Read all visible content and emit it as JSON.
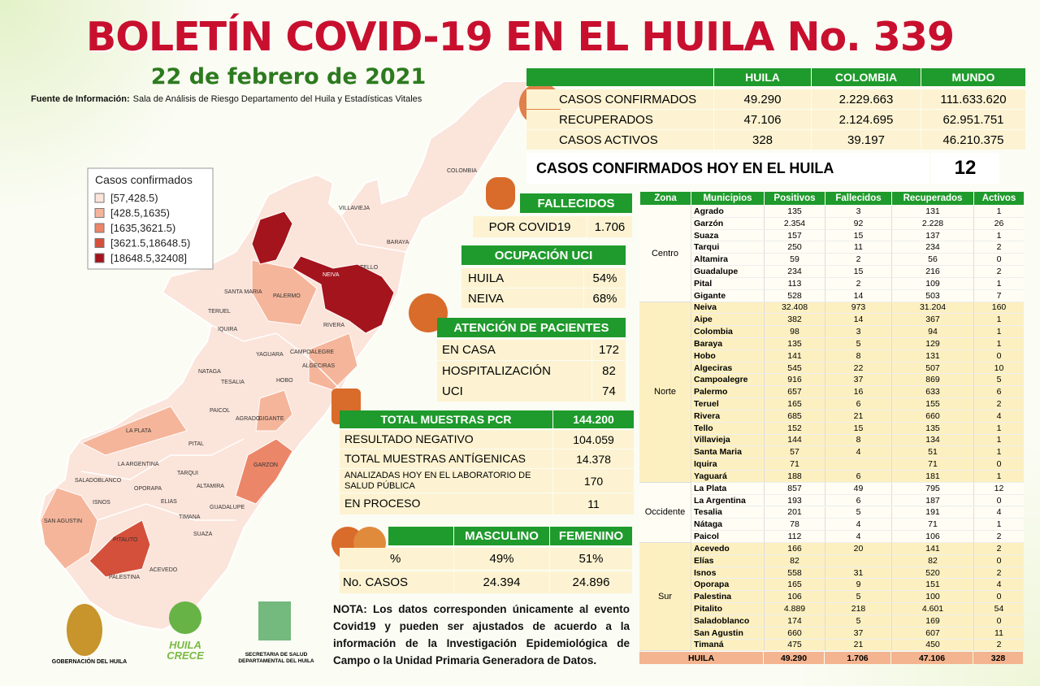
{
  "header": {
    "title": "BOLETÍN COVID-19 EN EL HUILA No. 339",
    "date": "22 de febrero de 2021",
    "source_label": "Fuente de Información:",
    "source_text": "Sala de Análisis de Riesgo Departamento del Huila y Estadísticas Vitales"
  },
  "legend": {
    "title": "Casos confirmados",
    "items": [
      {
        "label": "[57,428.5)",
        "color": "#fbe4da"
      },
      {
        "label": "[428.5,1635)",
        "color": "#f5b59a"
      },
      {
        "label": "[1635,3621.5)",
        "color": "#ec8668"
      },
      {
        "label": "[3621.5,18648.5)",
        "color": "#d4503b"
      },
      {
        "label": "[18648.5,32408]",
        "color": "#a3141c"
      }
    ]
  },
  "map": {
    "labels": [
      "COLOMBIA",
      "VILLAVIEJA",
      "BARAYA",
      "TELLO",
      "NEIVA",
      "SANTA MARIA",
      "PALERMO",
      "TERUEL",
      "RIVERA",
      "IQUIRA",
      "YAGUARA",
      "CAMPOALEGRE",
      "NATAGA",
      "TESALIA",
      "HOBO",
      "ALGECIRAS",
      "PAICOL",
      "AGRADO",
      "GIGANTE",
      "LA PLATA",
      "PITAL",
      "LA ARGENTINA",
      "TARQUI",
      "SALADOBLANCO",
      "OPORAPA",
      "ALTAMIRA",
      "GARZON",
      "ISNOS",
      "ELIAS",
      "TIMANA",
      "GUADALUPE",
      "SAN AGUSTIN",
      "SUAZA",
      "PITALITO",
      "ACEVEDO",
      "PALESTINA"
    ]
  },
  "summary": {
    "columns": [
      "HUILA",
      "COLOMBIA",
      "MUNDO"
    ],
    "rows": [
      {
        "label": "CASOS CONFIRMADOS",
        "values": [
          "49.290",
          "2.229.663",
          "111.633.620"
        ]
      },
      {
        "label": "RECUPERADOS",
        "values": [
          "47.106",
          "2.124.695",
          "62.951.751"
        ]
      },
      {
        "label": "CASOS ACTIVOS",
        "values": [
          "328",
          "39.197",
          "46.210.375"
        ]
      }
    ]
  },
  "today": {
    "label": "CASOS CONFIRMADOS HOY EN EL HUILA",
    "value": "12"
  },
  "deaths": {
    "title": "FALLECIDOS",
    "label": "POR COVID19",
    "value": "1.706"
  },
  "icu": {
    "title": "OCUPACIÓN UCI",
    "rows": [
      [
        "HUILA",
        "54%"
      ],
      [
        "NEIVA",
        "68%"
      ]
    ]
  },
  "care": {
    "title": "ATENCIÓN DE PACIENTES",
    "rows": [
      [
        "EN CASA",
        "172"
      ],
      [
        "HOSPITALIZACIÓN",
        "82"
      ],
      [
        "UCI",
        "74"
      ]
    ]
  },
  "tests": {
    "title": "TOTAL MUESTRAS PCR",
    "total": "144.200",
    "rows": [
      [
        "RESULTADO NEGATIVO",
        "104.059"
      ],
      [
        "TOTAL MUESTRAS ANTÍGENICAS",
        "14.378"
      ],
      [
        "ANALIZADAS HOY EN EL LABORATORIO DE SALUD PÚBLICA",
        "170"
      ],
      [
        "EN PROCESO",
        "11"
      ]
    ]
  },
  "sex": {
    "columns": [
      "MASCULINO",
      "FEMENINO"
    ],
    "rows": [
      [
        "%",
        "49%",
        "51%"
      ],
      [
        "No. CASOS",
        "24.394",
        "24.896"
      ]
    ]
  },
  "note": {
    "label": "NOTA:",
    "text": "Los datos corresponden únicamente al evento Covid19 y pueden ser ajustados de acuerdo a la información de la Investigación Epidemiológica de Campo o la Unidad Primaria Generadora de Datos."
  },
  "logos": {
    "gobernacion": "GOBERNACIÓN DEL HUILA",
    "crece": "HUILA CRECE",
    "secretaria": "SECRETARIA DE SALUD DEPARTAMENTAL DEL HUILA"
  },
  "table": {
    "columns": [
      "Zona",
      "Municipios",
      "Positivos",
      "Fallecidos",
      "Recuperados",
      "Activos"
    ],
    "zones": [
      {
        "name": "Centro",
        "rows": [
          [
            "Agrado",
            "135",
            "3",
            "131",
            "1"
          ],
          [
            "Garzón",
            "2.354",
            "92",
            "2.228",
            "26"
          ],
          [
            "Suaza",
            "157",
            "15",
            "137",
            "1"
          ],
          [
            "Tarqui",
            "250",
            "11",
            "234",
            "2"
          ],
          [
            "Altamira",
            "59",
            "2",
            "56",
            "0"
          ],
          [
            "Guadalupe",
            "234",
            "15",
            "216",
            "2"
          ],
          [
            "Pital",
            "113",
            "2",
            "109",
            "1"
          ],
          [
            "Gigante",
            "528",
            "14",
            "503",
            "7"
          ]
        ]
      },
      {
        "name": "Norte",
        "rows": [
          [
            "Neiva",
            "32.408",
            "973",
            "31.204",
            "160"
          ],
          [
            "Aipe",
            "382",
            "14",
            "367",
            "1"
          ],
          [
            "Colombia",
            "98",
            "3",
            "94",
            "1"
          ],
          [
            "Baraya",
            "135",
            "5",
            "129",
            "1"
          ],
          [
            "Hobo",
            "141",
            "8",
            "131",
            "0"
          ],
          [
            "Algeciras",
            "545",
            "22",
            "507",
            "10"
          ],
          [
            "Campoalegre",
            "916",
            "37",
            "869",
            "5"
          ],
          [
            "Palermo",
            "657",
            "16",
            "633",
            "6"
          ],
          [
            "Teruel",
            "165",
            "6",
            "155",
            "2"
          ],
          [
            "Rivera",
            "685",
            "21",
            "660",
            "4"
          ],
          [
            "Tello",
            "152",
            "15",
            "135",
            "1"
          ],
          [
            "Villavieja",
            "144",
            "8",
            "134",
            "1"
          ],
          [
            "Santa Maria",
            "57",
            "4",
            "51",
            "1"
          ],
          [
            "Iquira",
            "71",
            null,
            "71",
            "0"
          ],
          [
            "Yaguará",
            "188",
            "6",
            "181",
            "1"
          ]
        ]
      },
      {
        "name": "Occidente",
        "rows": [
          [
            "La Plata",
            "857",
            "49",
            "795",
            "12"
          ],
          [
            "La Argentina",
            "193",
            "6",
            "187",
            "0"
          ],
          [
            "Tesalia",
            "201",
            "5",
            "191",
            "4"
          ],
          [
            "Nátaga",
            "78",
            "4",
            "71",
            "1"
          ],
          [
            "Paicol",
            "112",
            "4",
            "106",
            "2"
          ]
        ]
      },
      {
        "name": "Sur",
        "rows": [
          [
            "Acevedo",
            "166",
            "20",
            "141",
            "2"
          ],
          [
            "Elías",
            "82",
            null,
            "82",
            "0"
          ],
          [
            "Isnos",
            "558",
            "31",
            "520",
            "2"
          ],
          [
            "Oporapa",
            "165",
            "9",
            "151",
            "4"
          ],
          [
            "Palestina",
            "106",
            "5",
            "100",
            "0"
          ],
          [
            "Pitalito",
            "4.889",
            "218",
            "4.601",
            "54"
          ],
          [
            "Saladoblanco",
            "174",
            "5",
            "169",
            "0"
          ],
          [
            "San Agustin",
            "660",
            "37",
            "607",
            "11"
          ],
          [
            "Timaná",
            "475",
            "21",
            "450",
            "2"
          ]
        ]
      }
    ],
    "total": [
      "HUILA",
      "49.290",
      "1.706",
      "47.106",
      "328"
    ]
  }
}
